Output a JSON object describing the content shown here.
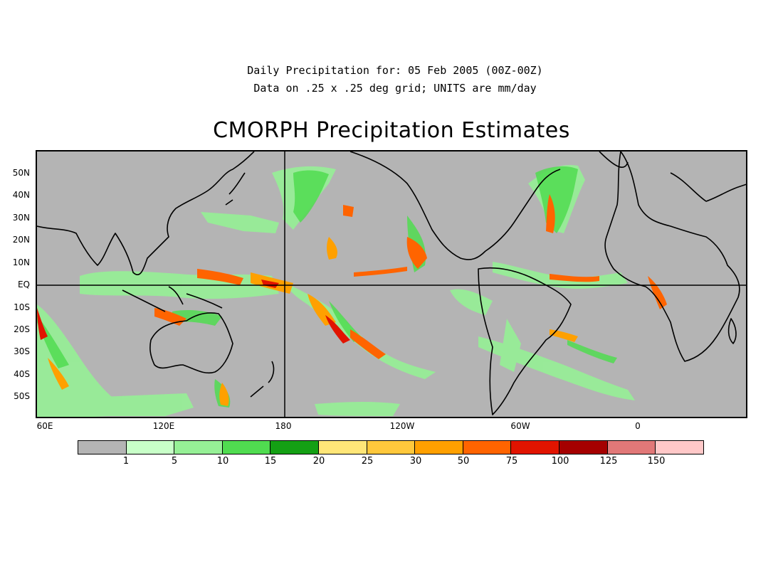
{
  "header": {
    "line1": "Daily Precipitation for: 05 Feb 2005 (00Z-00Z)",
    "line2": "Data on .25 x .25 deg grid; UNITS are mm/day"
  },
  "title": "CMORPH Precipitation Estimates",
  "map": {
    "background_color": "#b4b4b4",
    "lat_labels": [
      "50N",
      "40N",
      "30N",
      "20N",
      "10N",
      "EQ",
      "10S",
      "20S",
      "30S",
      "40S",
      "50S"
    ],
    "lon_labels": [
      "60E",
      "120E",
      "180",
      "120W",
      "60W",
      "0"
    ]
  },
  "colorbar": {
    "colors": [
      "#b4b4b4",
      "#c8ffc8",
      "#96f096",
      "#50dc50",
      "#14a014",
      "#ffe678",
      "#ffc83c",
      "#ffa000",
      "#ff6400",
      "#e11400",
      "#a50000",
      "#e17878",
      "#ffc8c8"
    ],
    "labels": [
      "1",
      "5",
      "10",
      "15",
      "20",
      "25",
      "30",
      "50",
      "75",
      "100",
      "125",
      "150"
    ]
  }
}
